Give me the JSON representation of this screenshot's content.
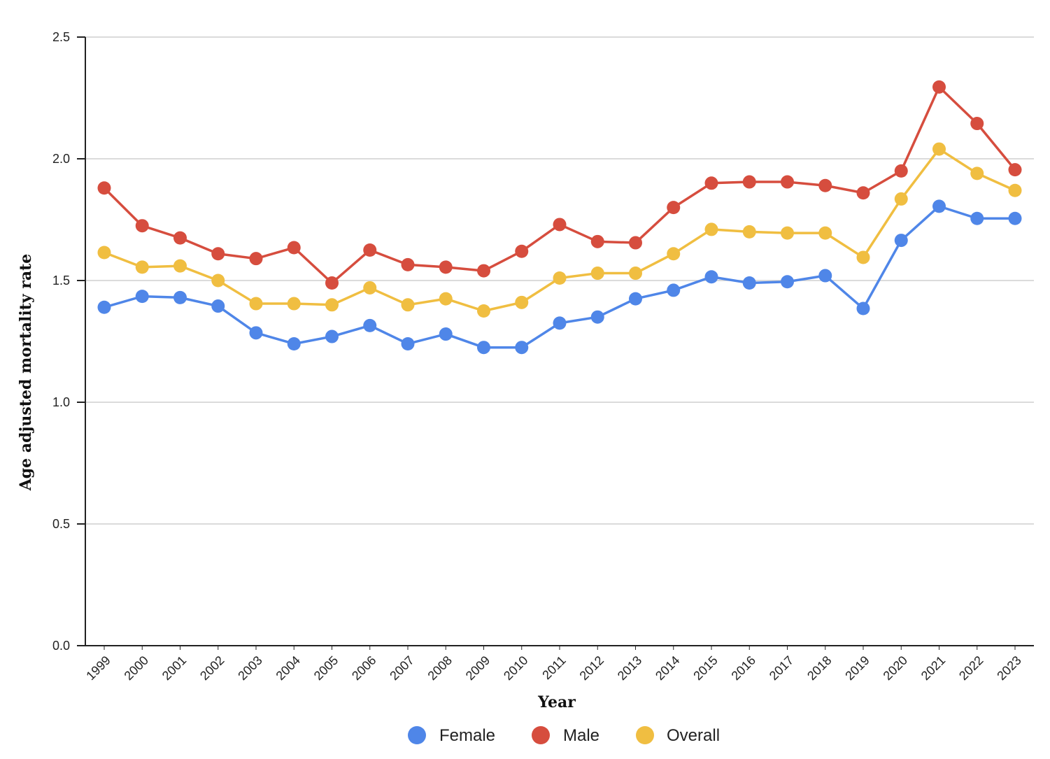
{
  "chart_data": {
    "type": "line",
    "x": [
      "1999",
      "2000",
      "2001",
      "2002",
      "2003",
      "2004",
      "2005",
      "2006",
      "2007",
      "2008",
      "2009",
      "2010",
      "2011",
      "2012",
      "2013",
      "2014",
      "2015",
      "2016",
      "2017",
      "2018",
      "2019",
      "2020",
      "2021",
      "2022",
      "2023"
    ],
    "series": [
      {
        "name": "Female",
        "color": "#4f86e8",
        "values": [
          1.39,
          1.435,
          1.43,
          1.395,
          1.285,
          1.24,
          1.27,
          1.315,
          1.24,
          1.28,
          1.225,
          1.225,
          1.325,
          1.35,
          1.425,
          1.46,
          1.515,
          1.49,
          1.495,
          1.52,
          1.385,
          1.665,
          1.805,
          1.755,
          1.755
        ]
      },
      {
        "name": "Male",
        "color": "#d64d3e",
        "values": [
          1.88,
          1.725,
          1.675,
          1.61,
          1.59,
          1.635,
          1.49,
          1.625,
          1.565,
          1.555,
          1.54,
          1.62,
          1.73,
          1.66,
          1.655,
          1.8,
          1.9,
          1.905,
          1.905,
          1.89,
          1.86,
          1.95,
          2.295,
          2.145,
          1.955
        ]
      },
      {
        "name": "Overall",
        "color": "#f0be41",
        "values": [
          1.615,
          1.555,
          1.56,
          1.5,
          1.405,
          1.405,
          1.4,
          1.47,
          1.4,
          1.425,
          1.375,
          1.41,
          1.51,
          1.53,
          1.53,
          1.61,
          1.71,
          1.7,
          1.695,
          1.695,
          1.595,
          1.835,
          2.04,
          1.94,
          1.87
        ]
      }
    ],
    "xlabel": "Year",
    "ylabel": "Age adjusted mortality rate",
    "ylim": [
      0,
      2.5
    ],
    "yticks": [
      "0.0",
      "0.5",
      "1.0",
      "1.5",
      "2.0",
      "2.5"
    ],
    "grid": true,
    "legend_position": "bottom"
  }
}
